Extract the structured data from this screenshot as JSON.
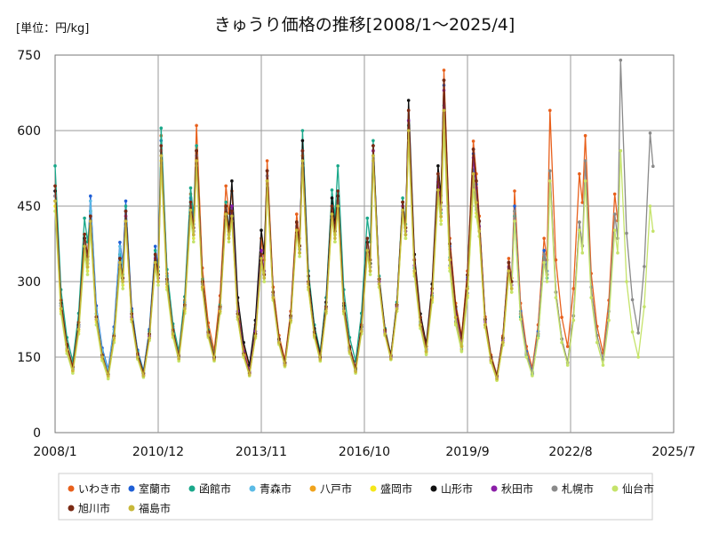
{
  "chart_data": {
    "type": "line",
    "title": "きゅうり価格の推移[2008/1～2025/4]",
    "unit_label": "[単位：円/kg]",
    "ylim": [
      0,
      750
    ],
    "yticks": [
      0,
      150,
      300,
      450,
      600,
      750
    ],
    "xlim": [
      "2008/1",
      "2025/7"
    ],
    "xticks": [
      "2008/1",
      "2010/12",
      "2013/11",
      "2016/10",
      "2019/9",
      "2022/8",
      "2025/7"
    ],
    "grid": true,
    "legend_position": "bottom",
    "y_precision": "estimated to ~10 円/kg from gridlines",
    "pattern": [
      {
        "m": "01",
        "v": 560
      },
      {
        "m": "03",
        "v": 300
      },
      {
        "m": "05",
        "v": 200
      },
      {
        "m": "07",
        "v": 150
      },
      {
        "m": "09",
        "v": 250
      },
      {
        "m": "11",
        "v": 450
      },
      {
        "m": "12",
        "v": 400
      }
    ],
    "series": [
      {
        "name": "いわき市",
        "color": "#e8601c",
        "years": [
          "2008",
          "2009",
          "2010",
          "2011",
          "2012",
          "2013",
          "2014",
          "2015",
          "2016",
          "2017",
          "2018",
          "2019",
          "2020",
          "2021",
          "2022",
          "2023",
          "2024"
        ],
        "peaks": [
          490,
          430,
          420,
          590,
          610,
          480,
          540,
          560,
          470,
          570,
          640,
          720,
          430,
          480,
          640,
          590,
          null
        ]
      },
      {
        "name": "室蘭市",
        "color": "#1f5fd6",
        "years": [
          "2008",
          "2009",
          "2010",
          "2011",
          "2012",
          "2013",
          "2014",
          "2015",
          "2016",
          "2017",
          "2018",
          "2019",
          "2020",
          "2021",
          "2022"
        ],
        "peaks": [
          480,
          470,
          460,
          580,
          560,
          450,
          520,
          550,
          470,
          560,
          620,
          690,
          420,
          450,
          null
        ]
      },
      {
        "name": "函館市",
        "color": "#1aa88a",
        "years": [
          "2008",
          "2009",
          "2010",
          "2011",
          "2012",
          "2013",
          "2014",
          "2015",
          "2016",
          "2017",
          "2018",
          "2019",
          "2020",
          "2021",
          "2022"
        ],
        "peaks": [
          530,
          440,
          450,
          605,
          570,
          440,
          500,
          600,
          530,
          580,
          610,
          650,
          400,
          430,
          null
        ]
      },
      {
        "name": "青森市",
        "color": "#5bbbe6",
        "years": [
          "2008",
          "2009",
          "2010",
          "2011",
          "2012",
          "2013",
          "2014",
          "2015",
          "2016",
          "2017",
          "2018",
          "2019",
          "2020",
          "2021",
          "2022",
          "2023"
        ],
        "peaks": [
          470,
          460,
          440,
          570,
          550,
          430,
          510,
          560,
          480,
          550,
          600,
          640,
          420,
          440,
          520,
          null
        ]
      },
      {
        "name": "八戸市",
        "color": "#f0a31c",
        "years": [
          "2008",
          "2009",
          "2010",
          "2011",
          "2012",
          "2013",
          "2014",
          "2015",
          "2016",
          "2017",
          "2018",
          "2019",
          "2020",
          "2021",
          "2022",
          "2023"
        ],
        "peaks": [
          460,
          420,
          430,
          560,
          560,
          440,
          520,
          550,
          460,
          560,
          600,
          640,
          400,
          440,
          520,
          null
        ]
      },
      {
        "name": "盛岡市",
        "color": "#f5e71a",
        "years": [
          "2008",
          "2009",
          "2010",
          "2011",
          "2012",
          "2013",
          "2014",
          "2015",
          "2016",
          "2017",
          "2018",
          "2019",
          "2020",
          "2021"
        ],
        "peaks": [
          450,
          410,
          420,
          540,
          540,
          420,
          500,
          530,
          450,
          540,
          590,
          610,
          390,
          null
        ]
      },
      {
        "name": "山形市",
        "color": "#111111",
        "years": [
          "2008",
          "2009",
          "2010",
          "2011",
          "2012",
          "2013",
          "2014",
          "2015",
          "2016",
          "2017",
          "2018",
          "2019",
          "2020",
          "2021"
        ],
        "peaks": [
          480,
          430,
          440,
          560,
          560,
          500,
          520,
          580,
          470,
          570,
          660,
          700,
          420,
          null
        ]
      },
      {
        "name": "秋田市",
        "color": "#8b1fa8",
        "years": [
          "2008",
          "2009",
          "2010",
          "2011",
          "2012",
          "2013",
          "2014",
          "2015",
          "2016",
          "2017",
          "2018",
          "2019",
          "2020",
          "2021"
        ],
        "peaks": [
          470,
          420,
          430,
          550,
          550,
          450,
          510,
          560,
          460,
          560,
          620,
          680,
          410,
          null
        ]
      },
      {
        "name": "札幌市",
        "color": "#8a8a8a",
        "years": [
          "2008",
          "2009",
          "2010",
          "2011",
          "2012",
          "2013",
          "2014",
          "2015",
          "2016",
          "2017",
          "2018",
          "2019",
          "2020",
          "2021",
          "2022",
          "2023",
          "2024"
        ],
        "peaks": [
          470,
          430,
          420,
          560,
          550,
          440,
          510,
          560,
          460,
          550,
          600,
          620,
          420,
          440,
          520,
          540,
          740
        ]
      },
      {
        "name": "仙台市",
        "color": "#c5e36a",
        "years": [
          "2008",
          "2009",
          "2010",
          "2011",
          "2012",
          "2013",
          "2014",
          "2015",
          "2016",
          "2017",
          "2018",
          "2019",
          "2020",
          "2021",
          "2022",
          "2023",
          "2024"
        ],
        "peaks": [
          440,
          400,
          410,
          530,
          530,
          420,
          490,
          530,
          440,
          540,
          580,
          600,
          390,
          420,
          500,
          500,
          560
        ]
      },
      {
        "name": "旭川市",
        "color": "#7a2a14",
        "years": [
          "2008",
          "2009",
          "2010",
          "2011",
          "2012",
          "2013",
          "2014",
          "2015",
          "2016",
          "2017",
          "2018",
          "2019",
          "2020",
          "2021"
        ],
        "peaks": [
          490,
          430,
          440,
          570,
          560,
          440,
          520,
          560,
          480,
          570,
          640,
          700,
          420,
          null
        ]
      },
      {
        "name": "福島市",
        "color": "#c8b83a",
        "years": [
          "2008",
          "2009",
          "2010",
          "2011",
          "2012",
          "2013",
          "2014",
          "2015",
          "2016",
          "2017",
          "2018",
          "2019",
          "2020",
          "2021"
        ],
        "peaks": [
          460,
          420,
          420,
          550,
          540,
          430,
          500,
          540,
          450,
          550,
          600,
          640,
          400,
          null
        ]
      }
    ]
  }
}
